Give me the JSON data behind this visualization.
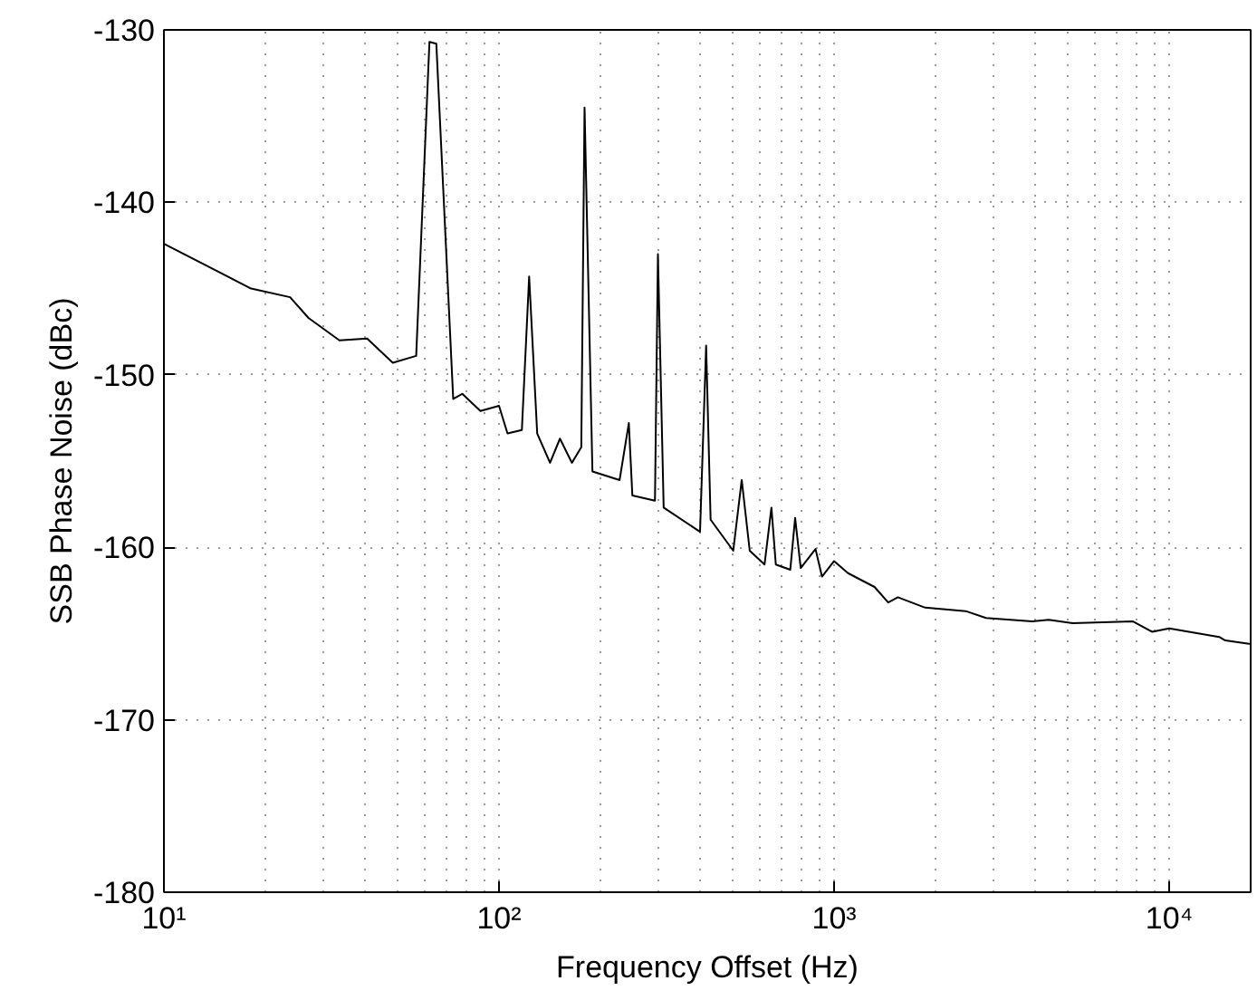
{
  "chart_data": {
    "type": "line",
    "xlabel": "Frequency Offset (Hz)",
    "ylabel": "SSB Phase Noise (dBc)",
    "log": "x",
    "grid": true,
    "xlim": [
      10,
      17500
    ],
    "ylim": [
      -180,
      -130
    ],
    "xticks": [
      {
        "value": 10,
        "label": "10¹"
      },
      {
        "value": 100,
        "label": "10²"
      },
      {
        "value": 1000,
        "label": "10³"
      },
      {
        "value": 10000,
        "label": "10⁴"
      }
    ],
    "yticks": [
      -180,
      -170,
      -160,
      -150,
      -140,
      -130
    ],
    "series": [
      {
        "color": "#000000",
        "x": [
          10,
          18.2,
          23.8,
          27,
          33.4,
          40.4,
          48.2,
          56.6,
          62,
          65,
          73,
          77.7,
          88,
          100,
          106,
          117,
          123,
          130,
          142,
          152,
          165,
          176,
          180,
          190,
          229,
          244,
          250,
          292,
          298,
          310,
          398,
          415,
          428,
          500,
          530,
          560,
          620,
          650,
          670,
          740,
          765,
          795,
          880,
          920,
          1000,
          1100,
          1320,
          1450,
          1550,
          1870,
          2470,
          2840,
          3900,
          4370,
          5150,
          7800,
          8900,
          10000,
          14100,
          14700,
          17300
        ],
        "values": [
          -142.4,
          -145.0,
          -145.5,
          -146.7,
          -148.0,
          -147.9,
          -149.3,
          -148.9,
          -130.7,
          -130.8,
          -151.4,
          -151.1,
          -152.1,
          -151.8,
          -153.4,
          -153.2,
          -144.3,
          -153.4,
          -155.1,
          -153.7,
          -155.1,
          -154.2,
          -134.5,
          -155.6,
          -156.1,
          -152.8,
          -157.0,
          -157.3,
          -143.0,
          -157.7,
          -159.1,
          -148.3,
          -158.4,
          -160.2,
          -156.1,
          -160.2,
          -161.0,
          -157.7,
          -161.0,
          -161.3,
          -158.3,
          -161.2,
          -160.1,
          -161.7,
          -160.8,
          -161.5,
          -162.3,
          -163.2,
          -162.9,
          -163.5,
          -163.7,
          -164.1,
          -164.3,
          -164.2,
          -164.4,
          -164.3,
          -164.9,
          -164.7,
          -165.2,
          -165.4,
          -165.6
        ]
      }
    ]
  }
}
